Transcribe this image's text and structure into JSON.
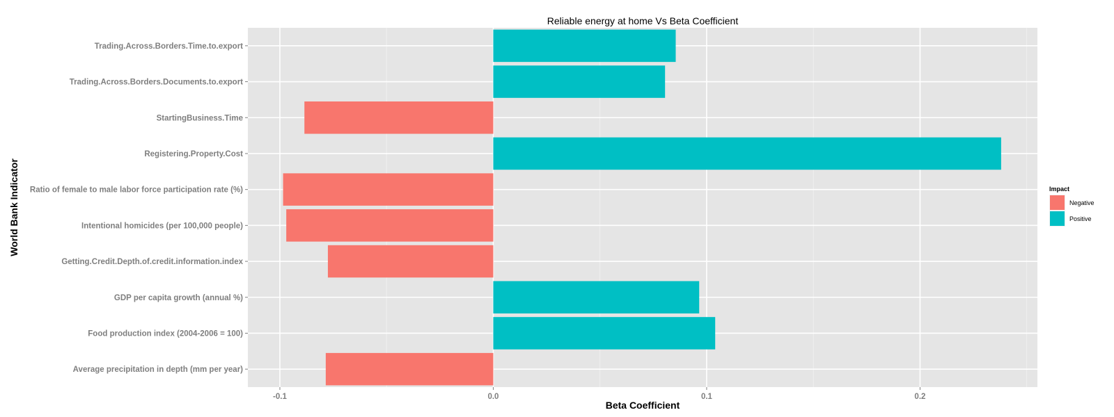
{
  "chart_data": {
    "type": "bar",
    "orientation": "horizontal",
    "title": "Reliable energy at home Vs Beta Coefficient",
    "xlabel": "Beta Coefficient",
    "ylabel": "World Bank Indicator",
    "xlim": [
      -0.115,
      0.255
    ],
    "x_ticks": [
      -0.1,
      0.0,
      0.1,
      0.2
    ],
    "x_tick_labels": [
      "-0.1",
      "0.0",
      "0.1",
      "0.2"
    ],
    "grid": true,
    "legend": {
      "title": "Impact",
      "placement": "right",
      "entries": [
        {
          "label": "Negative",
          "color": "#F8766D"
        },
        {
          "label": "Positive",
          "color": "#00BFC4"
        }
      ]
    },
    "categories": [
      "Trading.Across.Borders.Time.to.export",
      "Trading.Across.Borders.Documents.to.export",
      "StartingBusiness.Time",
      "Registering.Property.Cost",
      "Ratio of female to male labor force participation rate (%)",
      "Intentional homicides (per 100,000 people)",
      "Getting.Credit.Depth.of.credit.information.index",
      "GDP per capita growth (annual %)",
      "Food production index (2004-2006 = 100)",
      "Average precipitation in depth (mm per year)"
    ],
    "values": [
      0.0855,
      0.0805,
      -0.0885,
      0.238,
      -0.0985,
      -0.097,
      -0.0775,
      0.0965,
      0.104,
      -0.0785
    ],
    "impact": [
      "Positive",
      "Positive",
      "Negative",
      "Positive",
      "Negative",
      "Negative",
      "Negative",
      "Positive",
      "Positive",
      "Negative"
    ]
  }
}
